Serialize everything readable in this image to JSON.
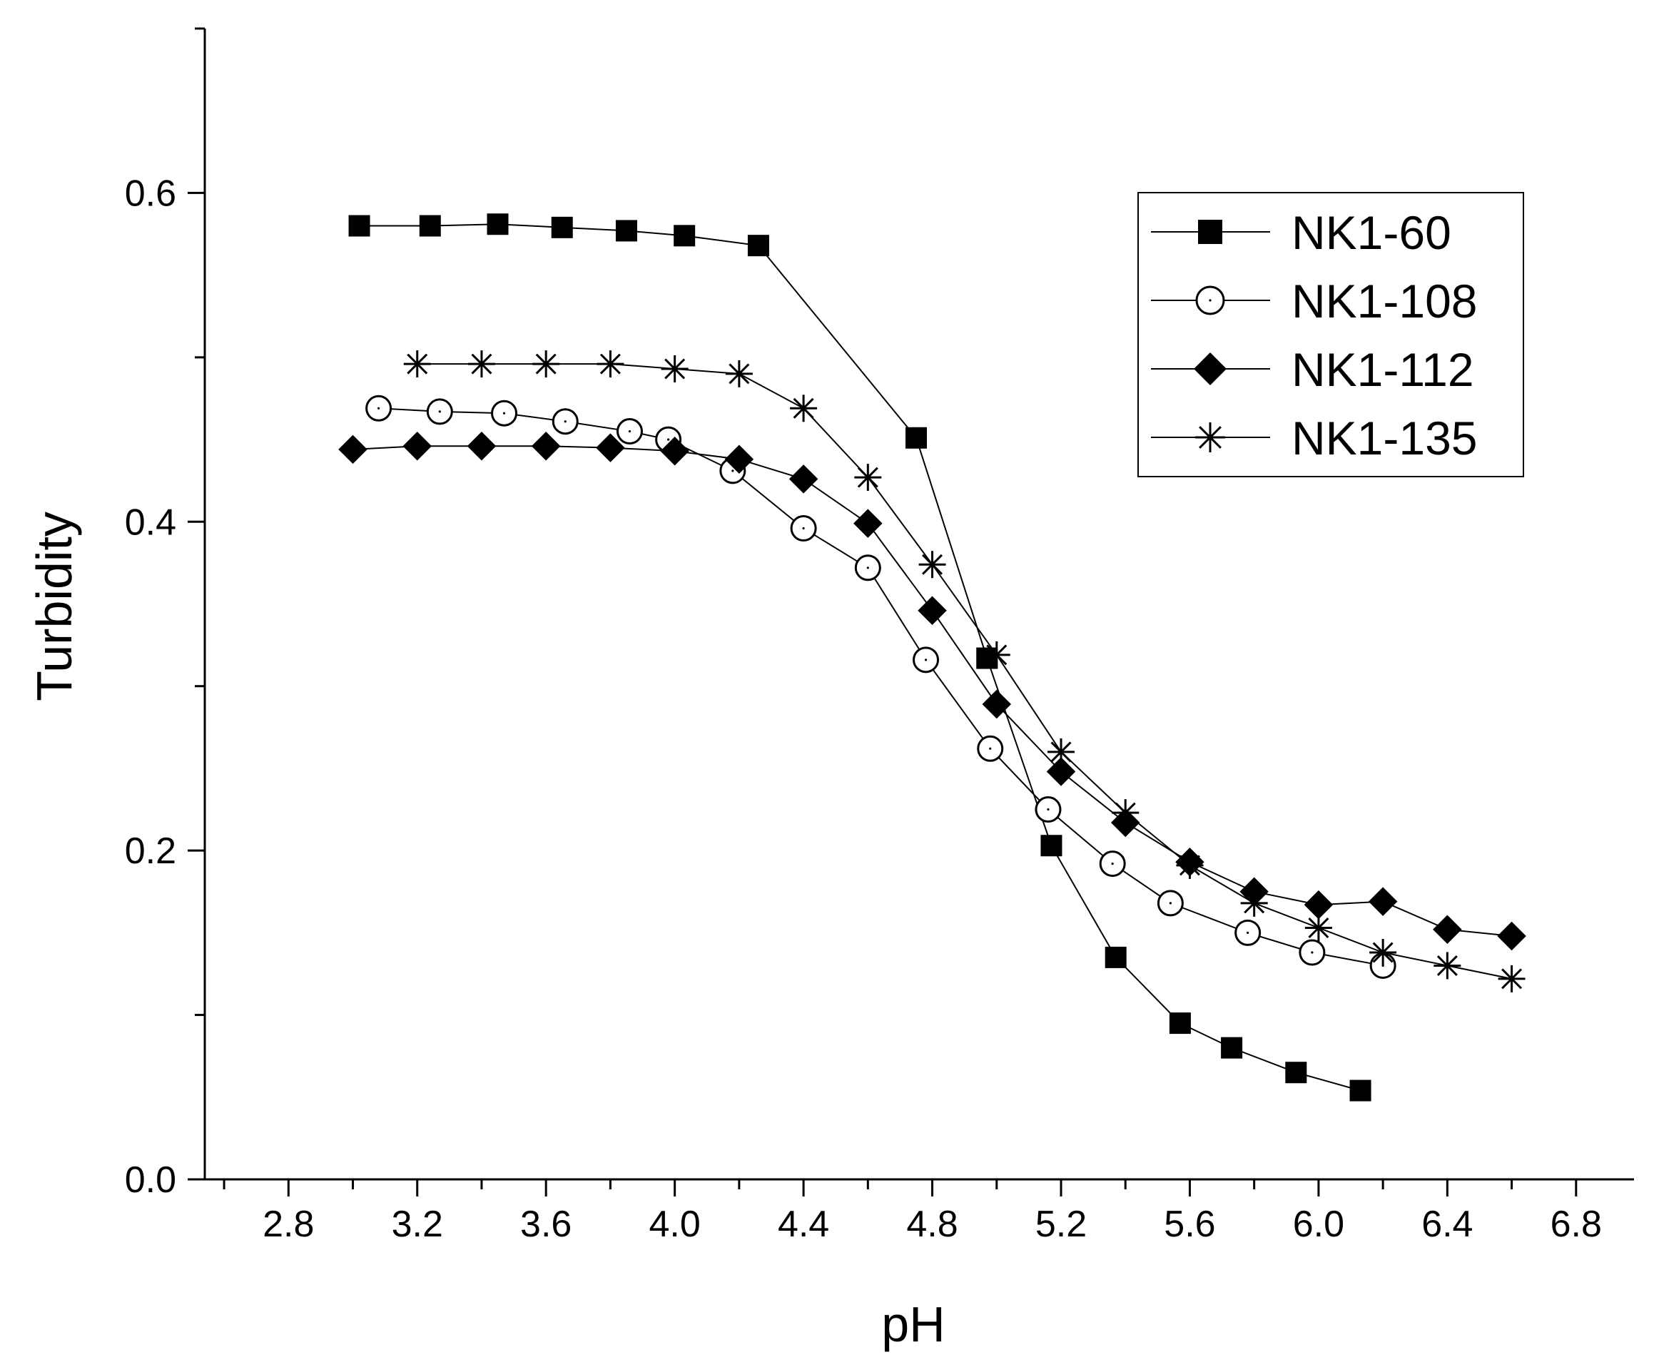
{
  "chart_data": {
    "type": "line",
    "title": "",
    "xlabel": "pH",
    "ylabel": "Turbidity",
    "xlim": [
      2.54,
      6.98
    ],
    "ylim": [
      0.0,
      0.7
    ],
    "xticks": [
      "2.8",
      "3.2",
      "3.6",
      "4.0",
      "4.4",
      "4.8",
      "5.2",
      "5.6",
      "6.0",
      "6.4",
      "6.8"
    ],
    "yticks": [
      "0.0",
      "0.2",
      "0.4",
      "0.6"
    ],
    "legend_position": "top-right",
    "grid": false,
    "series": [
      {
        "name": "NK1-60",
        "marker": "filled-square",
        "points": [
          [
            3.02,
            0.58
          ],
          [
            3.24,
            0.58
          ],
          [
            3.45,
            0.581
          ],
          [
            3.65,
            0.579
          ],
          [
            3.85,
            0.577
          ],
          [
            4.03,
            0.574
          ],
          [
            4.26,
            0.568
          ],
          [
            4.75,
            0.451
          ],
          [
            4.97,
            0.317
          ],
          [
            5.17,
            0.203
          ],
          [
            5.37,
            0.135
          ],
          [
            5.57,
            0.095
          ],
          [
            5.73,
            0.08
          ],
          [
            5.93,
            0.065
          ],
          [
            6.13,
            0.054
          ]
        ]
      },
      {
        "name": "NK1-108",
        "marker": "open-circle",
        "points": [
          [
            3.08,
            0.469
          ],
          [
            3.27,
            0.467
          ],
          [
            3.47,
            0.466
          ],
          [
            3.66,
            0.461
          ],
          [
            3.86,
            0.455
          ],
          [
            3.98,
            0.45
          ],
          [
            4.18,
            0.431
          ],
          [
            4.4,
            0.396
          ],
          [
            4.6,
            0.372
          ],
          [
            4.78,
            0.316
          ],
          [
            4.98,
            0.262
          ],
          [
            5.16,
            0.225
          ],
          [
            5.36,
            0.192
          ],
          [
            5.54,
            0.168
          ],
          [
            5.78,
            0.15
          ],
          [
            5.98,
            0.138
          ],
          [
            6.2,
            0.13
          ]
        ]
      },
      {
        "name": "NK1-112",
        "marker": "filled-diamond",
        "points": [
          [
            3.0,
            0.444
          ],
          [
            3.2,
            0.446
          ],
          [
            3.4,
            0.446
          ],
          [
            3.6,
            0.446
          ],
          [
            3.8,
            0.445
          ],
          [
            4.0,
            0.443
          ],
          [
            4.2,
            0.438
          ],
          [
            4.4,
            0.426
          ],
          [
            4.6,
            0.399
          ],
          [
            4.8,
            0.346
          ],
          [
            5.0,
            0.289
          ],
          [
            5.2,
            0.248
          ],
          [
            5.4,
            0.217
          ],
          [
            5.6,
            0.193
          ],
          [
            5.8,
            0.175
          ],
          [
            6.0,
            0.167
          ],
          [
            6.2,
            0.169
          ],
          [
            6.4,
            0.152
          ],
          [
            6.6,
            0.148
          ]
        ]
      },
      {
        "name": "NK1-135",
        "marker": "asterisk",
        "points": [
          [
            3.2,
            0.496
          ],
          [
            3.4,
            0.496
          ],
          [
            3.6,
            0.496
          ],
          [
            3.8,
            0.496
          ],
          [
            4.0,
            0.493
          ],
          [
            4.2,
            0.49
          ],
          [
            4.4,
            0.469
          ],
          [
            4.6,
            0.427
          ],
          [
            4.8,
            0.374
          ],
          [
            5.0,
            0.319
          ],
          [
            5.2,
            0.26
          ],
          [
            5.4,
            0.223
          ],
          [
            5.6,
            0.191
          ],
          [
            5.8,
            0.168
          ],
          [
            6.0,
            0.153
          ],
          [
            6.2,
            0.138
          ],
          [
            6.4,
            0.13
          ],
          [
            6.6,
            0.122
          ]
        ]
      }
    ]
  }
}
